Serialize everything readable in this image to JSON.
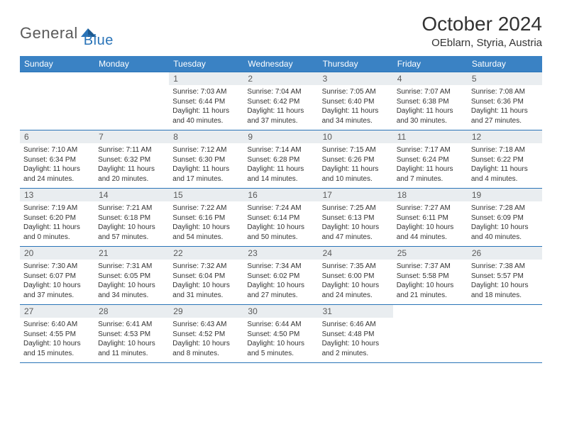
{
  "logo": {
    "text1": "General",
    "text2": "Blue"
  },
  "title": "October 2024",
  "location": "OEblarn, Styria, Austria",
  "colors": {
    "header_bg": "#3a82c4",
    "header_text": "#ffffff",
    "daynum_bg": "#e9edf0",
    "daynum_text": "#5a5a5a",
    "border": "#2a74b8",
    "body_text": "#333333",
    "logo_gray": "#5a5a5a",
    "logo_blue": "#2a74b8"
  },
  "typography": {
    "title_fontsize": 28,
    "location_fontsize": 15,
    "header_fontsize": 12,
    "daynum_fontsize": 12,
    "info_fontsize": 10
  },
  "day_headers": [
    "Sunday",
    "Monday",
    "Tuesday",
    "Wednesday",
    "Thursday",
    "Friday",
    "Saturday"
  ],
  "weeks": [
    [
      null,
      null,
      {
        "n": "1",
        "sr": "Sunrise: 7:03 AM",
        "ss": "Sunset: 6:44 PM",
        "dl": "Daylight: 11 hours and 40 minutes."
      },
      {
        "n": "2",
        "sr": "Sunrise: 7:04 AM",
        "ss": "Sunset: 6:42 PM",
        "dl": "Daylight: 11 hours and 37 minutes."
      },
      {
        "n": "3",
        "sr": "Sunrise: 7:05 AM",
        "ss": "Sunset: 6:40 PM",
        "dl": "Daylight: 11 hours and 34 minutes."
      },
      {
        "n": "4",
        "sr": "Sunrise: 7:07 AM",
        "ss": "Sunset: 6:38 PM",
        "dl": "Daylight: 11 hours and 30 minutes."
      },
      {
        "n": "5",
        "sr": "Sunrise: 7:08 AM",
        "ss": "Sunset: 6:36 PM",
        "dl": "Daylight: 11 hours and 27 minutes."
      }
    ],
    [
      {
        "n": "6",
        "sr": "Sunrise: 7:10 AM",
        "ss": "Sunset: 6:34 PM",
        "dl": "Daylight: 11 hours and 24 minutes."
      },
      {
        "n": "7",
        "sr": "Sunrise: 7:11 AM",
        "ss": "Sunset: 6:32 PM",
        "dl": "Daylight: 11 hours and 20 minutes."
      },
      {
        "n": "8",
        "sr": "Sunrise: 7:12 AM",
        "ss": "Sunset: 6:30 PM",
        "dl": "Daylight: 11 hours and 17 minutes."
      },
      {
        "n": "9",
        "sr": "Sunrise: 7:14 AM",
        "ss": "Sunset: 6:28 PM",
        "dl": "Daylight: 11 hours and 14 minutes."
      },
      {
        "n": "10",
        "sr": "Sunrise: 7:15 AM",
        "ss": "Sunset: 6:26 PM",
        "dl": "Daylight: 11 hours and 10 minutes."
      },
      {
        "n": "11",
        "sr": "Sunrise: 7:17 AM",
        "ss": "Sunset: 6:24 PM",
        "dl": "Daylight: 11 hours and 7 minutes."
      },
      {
        "n": "12",
        "sr": "Sunrise: 7:18 AM",
        "ss": "Sunset: 6:22 PM",
        "dl": "Daylight: 11 hours and 4 minutes."
      }
    ],
    [
      {
        "n": "13",
        "sr": "Sunrise: 7:19 AM",
        "ss": "Sunset: 6:20 PM",
        "dl": "Daylight: 11 hours and 0 minutes."
      },
      {
        "n": "14",
        "sr": "Sunrise: 7:21 AM",
        "ss": "Sunset: 6:18 PM",
        "dl": "Daylight: 10 hours and 57 minutes."
      },
      {
        "n": "15",
        "sr": "Sunrise: 7:22 AM",
        "ss": "Sunset: 6:16 PM",
        "dl": "Daylight: 10 hours and 54 minutes."
      },
      {
        "n": "16",
        "sr": "Sunrise: 7:24 AM",
        "ss": "Sunset: 6:14 PM",
        "dl": "Daylight: 10 hours and 50 minutes."
      },
      {
        "n": "17",
        "sr": "Sunrise: 7:25 AM",
        "ss": "Sunset: 6:13 PM",
        "dl": "Daylight: 10 hours and 47 minutes."
      },
      {
        "n": "18",
        "sr": "Sunrise: 7:27 AM",
        "ss": "Sunset: 6:11 PM",
        "dl": "Daylight: 10 hours and 44 minutes."
      },
      {
        "n": "19",
        "sr": "Sunrise: 7:28 AM",
        "ss": "Sunset: 6:09 PM",
        "dl": "Daylight: 10 hours and 40 minutes."
      }
    ],
    [
      {
        "n": "20",
        "sr": "Sunrise: 7:30 AM",
        "ss": "Sunset: 6:07 PM",
        "dl": "Daylight: 10 hours and 37 minutes."
      },
      {
        "n": "21",
        "sr": "Sunrise: 7:31 AM",
        "ss": "Sunset: 6:05 PM",
        "dl": "Daylight: 10 hours and 34 minutes."
      },
      {
        "n": "22",
        "sr": "Sunrise: 7:32 AM",
        "ss": "Sunset: 6:04 PM",
        "dl": "Daylight: 10 hours and 31 minutes."
      },
      {
        "n": "23",
        "sr": "Sunrise: 7:34 AM",
        "ss": "Sunset: 6:02 PM",
        "dl": "Daylight: 10 hours and 27 minutes."
      },
      {
        "n": "24",
        "sr": "Sunrise: 7:35 AM",
        "ss": "Sunset: 6:00 PM",
        "dl": "Daylight: 10 hours and 24 minutes."
      },
      {
        "n": "25",
        "sr": "Sunrise: 7:37 AM",
        "ss": "Sunset: 5:58 PM",
        "dl": "Daylight: 10 hours and 21 minutes."
      },
      {
        "n": "26",
        "sr": "Sunrise: 7:38 AM",
        "ss": "Sunset: 5:57 PM",
        "dl": "Daylight: 10 hours and 18 minutes."
      }
    ],
    [
      {
        "n": "27",
        "sr": "Sunrise: 6:40 AM",
        "ss": "Sunset: 4:55 PM",
        "dl": "Daylight: 10 hours and 15 minutes."
      },
      {
        "n": "28",
        "sr": "Sunrise: 6:41 AM",
        "ss": "Sunset: 4:53 PM",
        "dl": "Daylight: 10 hours and 11 minutes."
      },
      {
        "n": "29",
        "sr": "Sunrise: 6:43 AM",
        "ss": "Sunset: 4:52 PM",
        "dl": "Daylight: 10 hours and 8 minutes."
      },
      {
        "n": "30",
        "sr": "Sunrise: 6:44 AM",
        "ss": "Sunset: 4:50 PM",
        "dl": "Daylight: 10 hours and 5 minutes."
      },
      {
        "n": "31",
        "sr": "Sunrise: 6:46 AM",
        "ss": "Sunset: 4:48 PM",
        "dl": "Daylight: 10 hours and 2 minutes."
      },
      null,
      null
    ]
  ]
}
